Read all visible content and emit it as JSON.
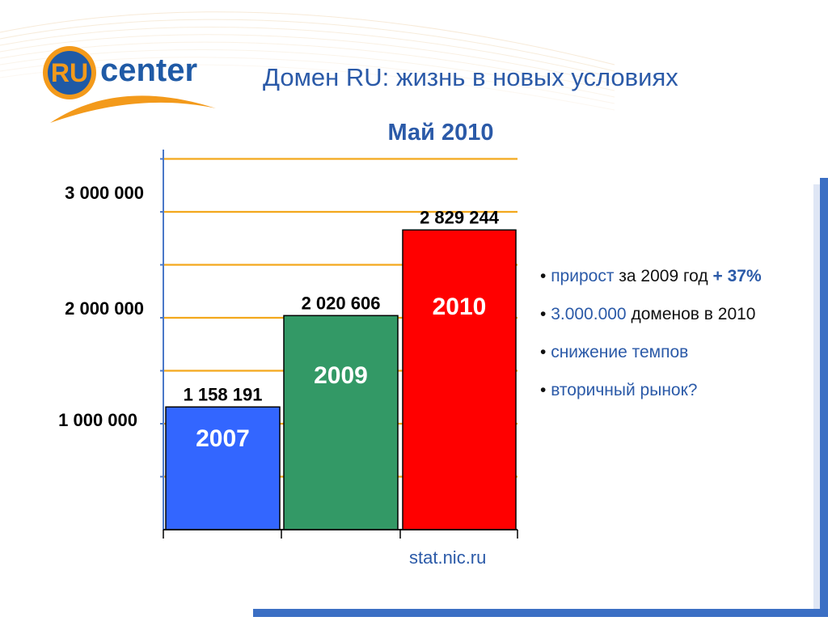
{
  "slide": {
    "title": "Домен RU: жизнь в новых условиях",
    "source": "stat.nic.ru"
  },
  "logo": {
    "text_ru": "RU",
    "text_center": "center",
    "colors": {
      "orange": "#f39a1b",
      "blue": "#1f5aa6"
    }
  },
  "chart_data": {
    "type": "bar",
    "title": "Май 2010",
    "categories": [
      "2007",
      "2009",
      "2010"
    ],
    "values": [
      1158191,
      2020606,
      2829244
    ],
    "value_labels": [
      "1 158 191",
      "2 020 606",
      "2 829 244"
    ],
    "bar_colors": [
      "#3366ff",
      "#339966",
      "#ff0000"
    ],
    "ylim": [
      0,
      3000000
    ],
    "yticks": [
      {
        "value": 1000000,
        "label": "1 000 000"
      },
      {
        "value": 2000000,
        "label": "2 000 000"
      },
      {
        "value": 3000000,
        "label": "3 000 000"
      }
    ],
    "grid": true,
    "grid_color": "#f3a81c"
  },
  "bullets": [
    {
      "parts": [
        {
          "text": "прирост",
          "style": "hl"
        },
        {
          "text": " за 2009 год ",
          "style": ""
        },
        {
          "text": "+ 37%",
          "style": "hl-b"
        }
      ]
    },
    {
      "parts": [
        {
          "text": "3.000.000",
          "style": "hl"
        },
        {
          "text": " доменов в 2010",
          "style": ""
        }
      ]
    },
    {
      "parts": [
        {
          "text": "снижение темпов",
          "style": "hl"
        }
      ]
    },
    {
      "parts": [
        {
          "text": "вторичный рынок?",
          "style": "hl"
        }
      ]
    }
  ],
  "bullet_marker": "• ",
  "colors": {
    "title_blue": "#2b5aa8",
    "frame_blue": "#3b6fc4"
  }
}
